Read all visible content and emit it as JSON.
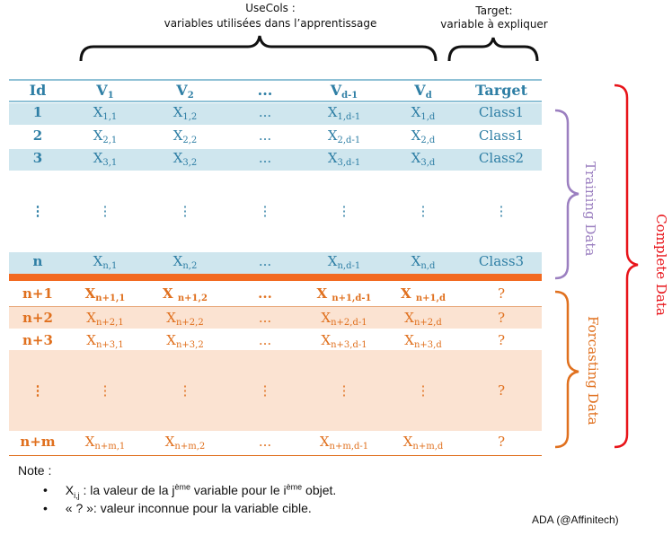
{
  "header": {
    "usecols_title": "UseCols :",
    "usecols_subtitle": "variables utilisées dans l’apprentissage",
    "target_title": "Target:",
    "target_subtitle": "variable à expliquer"
  },
  "columns": [
    "Id",
    "V1",
    "V2",
    "...",
    "Vd-1",
    "Vd",
    "Target"
  ],
  "training_rows": [
    {
      "id": "1",
      "cells": [
        "X1,1",
        "X1,2",
        "...",
        "X1,d-1",
        "X1,d"
      ],
      "target": "Class1"
    },
    {
      "id": "2",
      "cells": [
        "X2,1",
        "X2,2",
        "...",
        "X2,d-1",
        "X2,d"
      ],
      "target": "Class1"
    },
    {
      "id": "3",
      "cells": [
        "X3,1",
        "X3,2",
        "...",
        "X3,d-1",
        "X3,d"
      ],
      "target": "Class2"
    },
    {
      "id": "⋮",
      "cells": [
        "⋮",
        "⋮",
        "⋮",
        "⋮",
        "⋮"
      ],
      "target": "⋮"
    },
    {
      "id": "n",
      "cells": [
        "Xn,1",
        "Xn,2",
        "...",
        "Xn,d-1",
        "Xn,d"
      ],
      "target": "Class3"
    }
  ],
  "forecasting_rows": [
    {
      "id": "n+1",
      "cells": [
        "Xn+1,1",
        "X n+1,2",
        "...",
        "X n+1,d-1",
        "X n+1,d"
      ],
      "target": "?"
    },
    {
      "id": "n+2",
      "cells": [
        "Xn+2,1",
        "Xn+2,2",
        "...",
        "Xn+2,d-1",
        "Xn+2,d"
      ],
      "target": "?"
    },
    {
      "id": "n+3",
      "cells": [
        "Xn+3,1",
        "Xn+3,2",
        "...",
        "Xn+3,d-1",
        "Xn+3,d"
      ],
      "target": "?"
    },
    {
      "id": "⋮",
      "cells": [
        "⋮",
        "⋮",
        "⋮",
        "⋮",
        "⋮"
      ],
      "target": "?"
    },
    {
      "id": "n+m",
      "cells": [
        "Xn+m,1",
        "Xn+m,2",
        "...",
        "Xn+m,d-1",
        "Xn+m,d"
      ],
      "target": "?"
    }
  ],
  "labels": {
    "training": "Training Data",
    "forecasting": "Forcasting Data",
    "complete": "Complete  Data"
  },
  "note": {
    "title": "Note :",
    "item1_prefix": "X",
    "item1_sub": "i,j",
    "item1_a": " : la valeur de la j",
    "item1_sup1": "ème",
    "item1_b": " variable pour le  i",
    "item1_sup2": "ème",
    "item1_c": " objet.",
    "item2": "« ? »:  valeur inconnue  pour la variable cible."
  },
  "credit": "ADA (@Affinitech)",
  "colors": {
    "blue_text": "#2f7fa5",
    "blue_band": "#cfe6ee",
    "orange_text": "#e0701e",
    "orange_band": "#fbe3d2",
    "orange_bar": "#f26a21",
    "purple": "#9b7fc0",
    "red": "#e8141a"
  }
}
